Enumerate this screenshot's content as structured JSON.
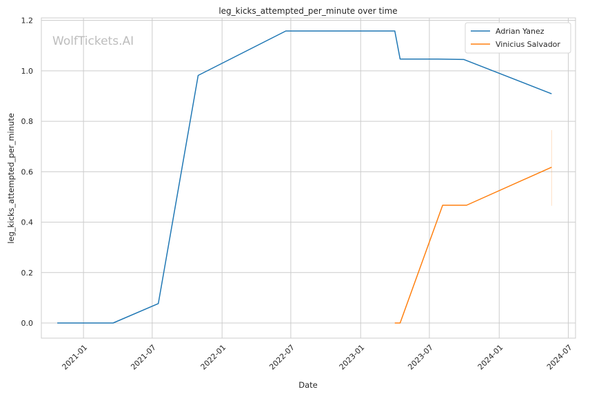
{
  "chart_data": {
    "type": "line",
    "title": "leg_kicks_attempted_per_minute over time",
    "xlabel": "Date",
    "ylabel": "leg_kicks_attempted_per_minute",
    "watermark": "WolfTickets.AI",
    "x_ticks": [
      "2021-01",
      "2021-07",
      "2022-01",
      "2022-07",
      "2023-01",
      "2023-07",
      "2024-01",
      "2024-07"
    ],
    "y_ticks": [
      "0.0",
      "0.2",
      "0.4",
      "0.6",
      "0.8",
      "1.0",
      "1.2"
    ],
    "xlim": [
      "2020-09-12",
      "2024-07-20"
    ],
    "ylim": [
      -0.06,
      1.21
    ],
    "grid": true,
    "legend_position": "top-right",
    "series": [
      {
        "name": "Adrian Yanez",
        "color": "#1f77b4",
        "points": [
          [
            "2020-10-24",
            0.0
          ],
          [
            "2021-03-20",
            0.0
          ],
          [
            "2021-07-17",
            0.077
          ],
          [
            "2021-10-30",
            0.982
          ],
          [
            "2022-06-18",
            1.158
          ],
          [
            "2023-04-01",
            1.158
          ],
          [
            "2023-04-15",
            1.047
          ],
          [
            "2023-07-15",
            1.047
          ],
          [
            "2023-09-30",
            1.045
          ],
          [
            "2024-05-18",
            0.909
          ]
        ]
      },
      {
        "name": "Vinicius Salvador",
        "color": "#ff7f0e",
        "points": [
          [
            "2023-04-01",
            0.0
          ],
          [
            "2023-04-15",
            0.0
          ],
          [
            "2023-08-05",
            0.467
          ],
          [
            "2023-10-07",
            0.467
          ],
          [
            "2024-05-18",
            0.618
          ]
        ],
        "error_bar": {
          "x": "2024-05-18",
          "low": 0.465,
          "high": 0.765
        }
      }
    ]
  }
}
